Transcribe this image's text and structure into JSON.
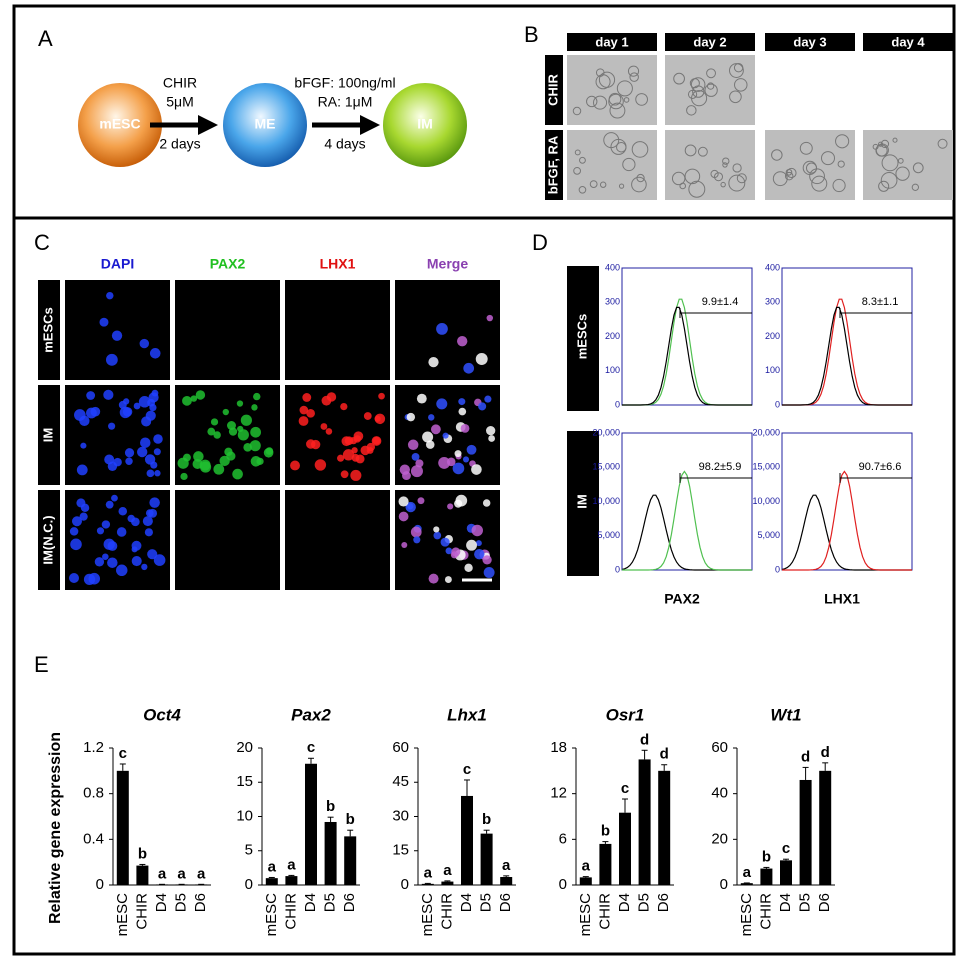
{
  "panel_a": {
    "label": "A",
    "nodes": [
      "mESC",
      "ME",
      "IM"
    ],
    "step_1": {
      "agent": "CHIR",
      "dose": "5μM",
      "time": "2 days"
    },
    "step_2": {
      "agent": "bFGF: 100ng/ml",
      "dose": "RA: 1μM",
      "time": "4 days"
    }
  },
  "panel_b": {
    "label": "B",
    "columns": [
      "day 1",
      "day 2",
      "day 3",
      "day 4"
    ],
    "rows": [
      "CHIR",
      "bFGF, RA"
    ]
  },
  "panel_c": {
    "label": "C",
    "columns": [
      "DAPI",
      "PAX2",
      "LHX1",
      "Merge"
    ],
    "rows": [
      "mESCs",
      "IM",
      "IM(N.C.)"
    ]
  },
  "panel_d": {
    "label": "D",
    "rows": [
      "mESCs",
      "IM"
    ],
    "markers": [
      "PAX2",
      "LHX1"
    ],
    "gates": [
      [
        "9.9±1.4",
        "8.3±1.1"
      ],
      [
        "98.2±5.9",
        "90.7±6.6"
      ]
    ],
    "y_tick_labels": [
      [
        "400",
        "300",
        "200",
        "100",
        "0"
      ],
      [
        "20,000",
        "15,000",
        "10,000",
        "5,000",
        "0"
      ]
    ]
  },
  "panel_e": {
    "label": "E",
    "y_label": "Relative gene expression"
  },
  "chart_data": [
    {
      "type": "bar",
      "title": "Oct4",
      "categories": [
        "mESC",
        "CHIR",
        "D4",
        "D5",
        "D6"
      ],
      "color": "#000000",
      "values": [
        1.0,
        0.17,
        0.005,
        0.005,
        0.005
      ],
      "errors": [
        0.06,
        0.01,
        0.001,
        0.001,
        0.001
      ],
      "letters": [
        "c",
        "b",
        "a",
        "a",
        "a"
      ],
      "ylim": [
        0,
        1.2
      ],
      "yticks": [
        0,
        0.4,
        0.8,
        1.2
      ]
    },
    {
      "type": "bar",
      "title": "Pax2",
      "categories": [
        "mESC",
        "CHIR",
        "D4",
        "D5",
        "D6"
      ],
      "color": "#000000",
      "values": [
        1.0,
        1.3,
        17.7,
        9.2,
        7.1
      ],
      "errors": [
        0.1,
        0.1,
        0.8,
        0.7,
        0.9
      ],
      "letters": [
        "a",
        "a",
        "c",
        "b",
        "b"
      ],
      "ylim": [
        0,
        20
      ],
      "yticks": [
        0,
        5,
        10,
        15,
        20
      ]
    },
    {
      "type": "bar",
      "title": "Lhx1",
      "categories": [
        "mESC",
        "CHIR",
        "D4",
        "D5",
        "D6"
      ],
      "color": "#000000",
      "values": [
        0.5,
        1.5,
        39,
        22.5,
        3.5
      ],
      "errors": [
        0.2,
        0.3,
        7,
        1.5,
        0.5
      ],
      "letters": [
        "a",
        "a",
        "c",
        "b",
        "a"
      ],
      "ylim": [
        0,
        60
      ],
      "yticks": [
        0,
        15,
        30,
        45,
        60
      ]
    },
    {
      "type": "bar",
      "title": "Osr1",
      "categories": [
        "mESC",
        "CHIR",
        "D4",
        "D5",
        "D6"
      ],
      "color": "#000000",
      "values": [
        1.0,
        5.4,
        9.5,
        16.5,
        15
      ],
      "errors": [
        0.1,
        0.3,
        1.8,
        1.2,
        0.8
      ],
      "letters": [
        "a",
        "b",
        "c",
        "d",
        "d"
      ],
      "ylim": [
        0,
        18
      ],
      "yticks": [
        0,
        6,
        12,
        18
      ]
    },
    {
      "type": "bar",
      "title": "Wt1",
      "categories": [
        "mESC",
        "CHIR",
        "D4",
        "D5",
        "D6"
      ],
      "color": "#000000",
      "values": [
        0.8,
        7.2,
        10.8,
        46,
        50
      ],
      "errors": [
        0.1,
        0.5,
        0.5,
        5.5,
        3.5
      ],
      "letters": [
        "a",
        "b",
        "c",
        "d",
        "d"
      ],
      "ylim": [
        0,
        60
      ],
      "yticks": [
        0,
        20,
        40,
        60
      ]
    }
  ]
}
